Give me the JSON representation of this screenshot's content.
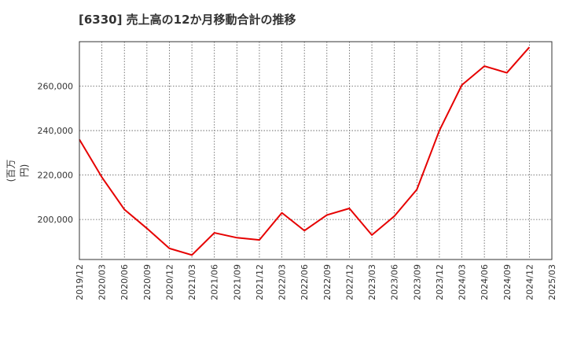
{
  "chart_data": {
    "type": "line",
    "title": "[6330]  売上高の12か月移動合計の推移",
    "ylabel": "(百万円)",
    "xlabel": "",
    "grid": true,
    "ylim": [
      182000,
      280000
    ],
    "yticks": [
      200000,
      220000,
      240000,
      260000
    ],
    "ytick_labels": [
      "200,000",
      "220,000",
      "240,000",
      "260,000"
    ],
    "categories": [
      "2019/12",
      "2020/03",
      "2020/06",
      "2020/09",
      "2020/12",
      "2021/03",
      "2021/06",
      "2021/09",
      "2021/12",
      "2022/03",
      "2022/06",
      "2022/09",
      "2022/12",
      "2023/03",
      "2023/06",
      "2023/09",
      "2023/12",
      "2024/03",
      "2024/06",
      "2024/09",
      "2024/12",
      "2025/03"
    ],
    "series": [
      {
        "name": "売上高",
        "color": "#e60000",
        "values": [
          236000,
          219000,
          204500,
          196000,
          187000,
          184000,
          194000,
          191800,
          190800,
          203000,
          195000,
          202000,
          205000,
          193000,
          201500,
          213500,
          240000,
          260500,
          269000,
          266000,
          277500,
          null
        ]
      }
    ]
  }
}
